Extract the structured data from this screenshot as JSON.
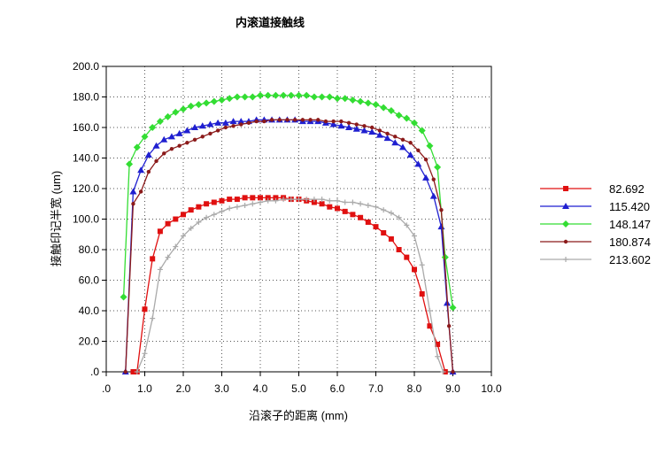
{
  "chart_data": {
    "type": "line",
    "title": "内滚道接触线",
    "xlabel": "沿滚子的距离 (mm)",
    "ylabel": "接触印记半宽 (um)",
    "xlim": [
      0,
      10
    ],
    "ylim": [
      0,
      200
    ],
    "x_ticks": [
      ".0",
      "1.0",
      "2.0",
      "3.0",
      "4.0",
      "5.0",
      "6.0",
      "7.0",
      "8.0",
      "9.0",
      "10.0"
    ],
    "y_ticks": [
      ".0",
      "20.0",
      "40.0",
      "60.0",
      "80.0",
      "100.0",
      "120.0",
      "140.0",
      "160.0",
      "180.0",
      "200.0"
    ],
    "grid": true,
    "legend_position": "right",
    "series": [
      {
        "name": "82.692",
        "color": "#e01010",
        "marker": "square",
        "points": [
          [
            0.7,
            0
          ],
          [
            0.8,
            0
          ],
          [
            1.0,
            41
          ],
          [
            1.2,
            74
          ],
          [
            1.4,
            92
          ],
          [
            1.6,
            97
          ],
          [
            1.8,
            100
          ],
          [
            2.0,
            103
          ],
          [
            2.2,
            106
          ],
          [
            2.4,
            108
          ],
          [
            2.6,
            110
          ],
          [
            2.8,
            111
          ],
          [
            3.0,
            112
          ],
          [
            3.2,
            113
          ],
          [
            3.4,
            113
          ],
          [
            3.6,
            114
          ],
          [
            3.8,
            114
          ],
          [
            4.0,
            114
          ],
          [
            4.2,
            114
          ],
          [
            4.4,
            114
          ],
          [
            4.6,
            114
          ],
          [
            4.8,
            113
          ],
          [
            5.0,
            113
          ],
          [
            5.2,
            112
          ],
          [
            5.4,
            111
          ],
          [
            5.6,
            110
          ],
          [
            5.8,
            108
          ],
          [
            6.0,
            107
          ],
          [
            6.2,
            105
          ],
          [
            6.4,
            103
          ],
          [
            6.6,
            101
          ],
          [
            6.8,
            98
          ],
          [
            7.0,
            95
          ],
          [
            7.2,
            91
          ],
          [
            7.4,
            87
          ],
          [
            7.6,
            80
          ],
          [
            7.8,
            75
          ],
          [
            8.0,
            67
          ],
          [
            8.2,
            51
          ],
          [
            8.4,
            30
          ],
          [
            8.6,
            18
          ],
          [
            8.8,
            0
          ]
        ]
      },
      {
        "name": "115.420",
        "color": "#1f1fd0",
        "marker": "triangle",
        "points": [
          [
            0.5,
            0
          ],
          [
            0.7,
            118
          ],
          [
            0.9,
            132
          ],
          [
            1.1,
            142
          ],
          [
            1.3,
            148
          ],
          [
            1.5,
            152
          ],
          [
            1.7,
            154
          ],
          [
            1.9,
            156
          ],
          [
            2.1,
            158
          ],
          [
            2.3,
            160
          ],
          [
            2.5,
            161
          ],
          [
            2.7,
            162
          ],
          [
            2.9,
            163
          ],
          [
            3.1,
            163
          ],
          [
            3.3,
            164
          ],
          [
            3.5,
            164
          ],
          [
            3.7,
            164
          ],
          [
            3.9,
            165
          ],
          [
            4.1,
            165
          ],
          [
            4.3,
            165
          ],
          [
            4.5,
            165
          ],
          [
            4.7,
            165
          ],
          [
            4.9,
            165
          ],
          [
            5.1,
            164
          ],
          [
            5.3,
            164
          ],
          [
            5.5,
            164
          ],
          [
            5.7,
            163
          ],
          [
            5.9,
            162
          ],
          [
            6.1,
            161
          ],
          [
            6.3,
            160
          ],
          [
            6.5,
            159
          ],
          [
            6.7,
            158
          ],
          [
            6.9,
            157
          ],
          [
            7.1,
            155
          ],
          [
            7.3,
            153
          ],
          [
            7.5,
            150
          ],
          [
            7.7,
            147
          ],
          [
            7.9,
            142
          ],
          [
            8.1,
            136
          ],
          [
            8.3,
            127
          ],
          [
            8.5,
            115
          ],
          [
            8.7,
            95
          ],
          [
            8.85,
            45
          ],
          [
            9.0,
            0
          ]
        ]
      },
      {
        "name": "148.147",
        "color": "#33dd33",
        "marker": "diamond",
        "points": [
          [
            0.45,
            49
          ],
          [
            0.6,
            136
          ],
          [
            0.8,
            147
          ],
          [
            1.0,
            154
          ],
          [
            1.2,
            160
          ],
          [
            1.4,
            164
          ],
          [
            1.6,
            167
          ],
          [
            1.8,
            170
          ],
          [
            2.0,
            172
          ],
          [
            2.2,
            174
          ],
          [
            2.4,
            175
          ],
          [
            2.6,
            176
          ],
          [
            2.8,
            177
          ],
          [
            3.0,
            178
          ],
          [
            3.2,
            179
          ],
          [
            3.4,
            180
          ],
          [
            3.6,
            180
          ],
          [
            3.8,
            180
          ],
          [
            4.0,
            181
          ],
          [
            4.2,
            181
          ],
          [
            4.4,
            181
          ],
          [
            4.6,
            181
          ],
          [
            4.8,
            181
          ],
          [
            5.0,
            181
          ],
          [
            5.2,
            181
          ],
          [
            5.4,
            180
          ],
          [
            5.6,
            180
          ],
          [
            5.8,
            180
          ],
          [
            6.0,
            179
          ],
          [
            6.2,
            179
          ],
          [
            6.4,
            178
          ],
          [
            6.6,
            177
          ],
          [
            6.8,
            176
          ],
          [
            7.0,
            175
          ],
          [
            7.2,
            173
          ],
          [
            7.4,
            171
          ],
          [
            7.6,
            168
          ],
          [
            7.8,
            166
          ],
          [
            8.0,
            163
          ],
          [
            8.2,
            158
          ],
          [
            8.4,
            148
          ],
          [
            8.6,
            134
          ],
          [
            8.8,
            75
          ],
          [
            9.0,
            42
          ]
        ]
      },
      {
        "name": "180.874",
        "color": "#8b1a1a",
        "marker": "dot",
        "points": [
          [
            0.5,
            0
          ],
          [
            0.7,
            110
          ],
          [
            0.9,
            118
          ],
          [
            1.1,
            131
          ],
          [
            1.3,
            138
          ],
          [
            1.5,
            143
          ],
          [
            1.7,
            146
          ],
          [
            1.9,
            148
          ],
          [
            2.1,
            150
          ],
          [
            2.3,
            152
          ],
          [
            2.5,
            154
          ],
          [
            2.7,
            156
          ],
          [
            2.9,
            158
          ],
          [
            3.1,
            160
          ],
          [
            3.3,
            161
          ],
          [
            3.5,
            162
          ],
          [
            3.7,
            163
          ],
          [
            3.9,
            164
          ],
          [
            4.1,
            164
          ],
          [
            4.3,
            165
          ],
          [
            4.5,
            165
          ],
          [
            4.7,
            165
          ],
          [
            4.9,
            165
          ],
          [
            5.1,
            165
          ],
          [
            5.3,
            165
          ],
          [
            5.5,
            165
          ],
          [
            5.7,
            164
          ],
          [
            5.9,
            164
          ],
          [
            6.1,
            164
          ],
          [
            6.3,
            163
          ],
          [
            6.5,
            162
          ],
          [
            6.7,
            161
          ],
          [
            6.9,
            160
          ],
          [
            7.1,
            158
          ],
          [
            7.3,
            156
          ],
          [
            7.5,
            154
          ],
          [
            7.7,
            152
          ],
          [
            7.9,
            150
          ],
          [
            8.1,
            145
          ],
          [
            8.3,
            139
          ],
          [
            8.5,
            126
          ],
          [
            8.7,
            106
          ],
          [
            8.9,
            30
          ],
          [
            9.0,
            0
          ]
        ]
      },
      {
        "name": "213.602",
        "color": "#aaaaaa",
        "marker": "plus",
        "points": [
          [
            0.8,
            0
          ],
          [
            1.0,
            12
          ],
          [
            1.2,
            35
          ],
          [
            1.4,
            67
          ],
          [
            1.6,
            75
          ],
          [
            1.8,
            82
          ],
          [
            2.0,
            89
          ],
          [
            2.2,
            94
          ],
          [
            2.4,
            98
          ],
          [
            2.6,
            101
          ],
          [
            2.8,
            103
          ],
          [
            3.0,
            105
          ],
          [
            3.2,
            107
          ],
          [
            3.4,
            108
          ],
          [
            3.6,
            109
          ],
          [
            3.8,
            110
          ],
          [
            4.0,
            111
          ],
          [
            4.2,
            112
          ],
          [
            4.4,
            112
          ],
          [
            4.6,
            113
          ],
          [
            4.8,
            113
          ],
          [
            5.0,
            113
          ],
          [
            5.2,
            113
          ],
          [
            5.4,
            113
          ],
          [
            5.6,
            113
          ],
          [
            5.8,
            112
          ],
          [
            6.0,
            112
          ],
          [
            6.2,
            111
          ],
          [
            6.4,
            111
          ],
          [
            6.6,
            110
          ],
          [
            6.8,
            109
          ],
          [
            7.0,
            108
          ],
          [
            7.2,
            106
          ],
          [
            7.4,
            104
          ],
          [
            7.6,
            101
          ],
          [
            7.8,
            96
          ],
          [
            8.0,
            89
          ],
          [
            8.2,
            70
          ],
          [
            8.4,
            40
          ],
          [
            8.6,
            10
          ],
          [
            8.75,
            0
          ]
        ]
      }
    ]
  }
}
